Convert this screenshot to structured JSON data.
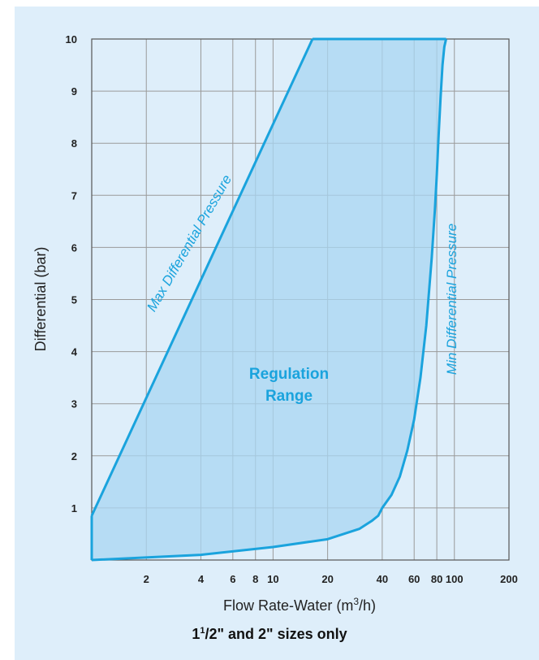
{
  "chart_data": {
    "type": "area",
    "x_scale": "log",
    "xlabel_pre": "Flow Rate-Water (m",
    "xlabel_sup": "3",
    "xlabel_post": "/h)",
    "ylabel": "Differential (bar)",
    "x_ticks": [
      2,
      4,
      6,
      8,
      10,
      20,
      40,
      60,
      80,
      100,
      200
    ],
    "y_ticks": [
      1,
      2,
      3,
      4,
      5,
      6,
      7,
      8,
      9,
      10
    ],
    "xlim": [
      1,
      200
    ],
    "ylim": [
      0,
      10
    ],
    "grid": true,
    "series": [
      {
        "name": "Max Differential Pressure",
        "x": [
          1,
          16.5
        ],
        "y": [
          0.85,
          10
        ]
      },
      {
        "name": "Min Differential Pressure",
        "x": [
          1,
          4,
          10,
          20,
          30,
          35,
          38,
          40,
          45,
          50,
          55,
          60,
          65,
          70,
          75,
          78,
          80,
          82,
          84,
          86,
          88,
          90
        ],
        "y": [
          0,
          0.1,
          0.25,
          0.4,
          0.6,
          0.75,
          0.85,
          1.0,
          1.25,
          1.6,
          2.1,
          2.7,
          3.5,
          4.5,
          5.8,
          6.7,
          7.4,
          8.2,
          8.9,
          9.5,
          9.85,
          10
        ]
      }
    ],
    "region_label_line1": "Regulation",
    "region_label_line2": "Range",
    "colors": {
      "line": "#1aa3dd",
      "fill": "#a8d5f2",
      "grid": "#9a9a9a",
      "background": "#deeefa"
    }
  },
  "footnote": {
    "whole": "1",
    "sup": "1",
    "rest": "/2\" and 2\" sizes only"
  }
}
